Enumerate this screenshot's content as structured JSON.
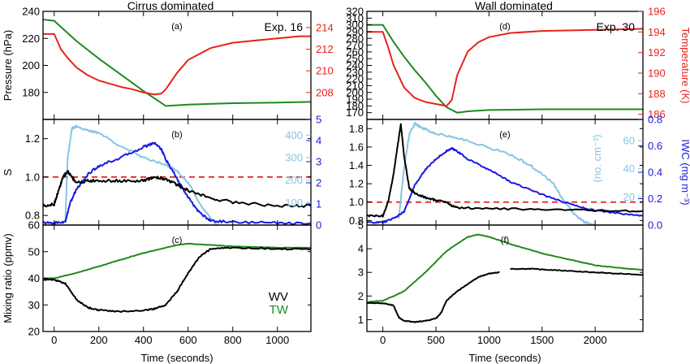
{
  "colors": {
    "black": "#000000",
    "red": "#e8221c",
    "green": "#1f8a1f",
    "blue": "#1a1ae0",
    "light_blue": "#87c4e4"
  },
  "titles": {
    "left": "Cirrus dominated",
    "right": "Wall dominated"
  },
  "chart_data": [
    {
      "type": "line",
      "panel": "(a)",
      "annotation": "Exp. 16",
      "ylabel": "Pressure (hPa)",
      "ylabel_right": "",
      "xlim": [
        -50,
        1150
      ],
      "ylim": [
        160,
        240
      ],
      "ylim_right": [
        205.5,
        215.5
      ],
      "xticks": [
        0,
        200,
        400,
        600,
        800,
        1000
      ],
      "yticks": [
        180,
        200,
        220,
        240
      ],
      "yticks_right": [
        208,
        210,
        212,
        214
      ],
      "series": [
        {
          "axis": "left",
          "color": "green",
          "x": [
            -50,
            0,
            100,
            200,
            300,
            400,
            500,
            600,
            800,
            1000,
            1150
          ],
          "y": [
            234,
            233,
            218,
            205,
            193,
            181,
            170,
            171,
            172,
            172.5,
            173
          ]
        },
        {
          "axis": "right",
          "color": "red",
          "x": [
            -50,
            0,
            30,
            60,
            100,
            150,
            200,
            300,
            350,
            400,
            450,
            480,
            500,
            550,
            600,
            700,
            800,
            900,
            1000,
            1100,
            1150
          ],
          "y": [
            213.4,
            213.4,
            212.0,
            211.2,
            210.3,
            209.6,
            209.1,
            208.5,
            208.3,
            208.0,
            207.8,
            207.9,
            208.3,
            209.8,
            211.0,
            212.1,
            212.6,
            212.8,
            213.0,
            213.2,
            213.2
          ]
        }
      ]
    },
    {
      "type": "line",
      "panel": "(d)",
      "annotation": "Exp. 30",
      "ylabel": "",
      "ylabel_right": "Temperature (K)",
      "xlim": [
        -150,
        2450
      ],
      "ylim": [
        160,
        320
      ],
      "ylim_right": [
        185.5,
        196
      ],
      "xticks": [
        0,
        500,
        1000,
        1500,
        2000
      ],
      "yticks": [
        170,
        180,
        190,
        200,
        210,
        220,
        230,
        240,
        250,
        260,
        270,
        280,
        290,
        300,
        310,
        320
      ],
      "yticks_right": [
        186,
        188,
        190,
        192,
        194,
        196
      ],
      "series": [
        {
          "axis": "left",
          "color": "green",
          "x": [
            -150,
            0,
            100,
            200,
            300,
            400,
            500,
            600,
            700,
            800,
            1000,
            1500,
            2000,
            2450
          ],
          "y": [
            300,
            300,
            275,
            253,
            233,
            215,
            195,
            178,
            170,
            172,
            174,
            175,
            175,
            175
          ]
        },
        {
          "axis": "right",
          "color": "red",
          "x": [
            -150,
            0,
            50,
            100,
            200,
            300,
            400,
            500,
            600,
            650,
            700,
            800,
            900,
            1000,
            1200,
            1500,
            2000,
            2450
          ],
          "y": [
            194.0,
            194.0,
            192.5,
            190.8,
            188.6,
            187.6,
            187.2,
            187.0,
            186.8,
            187.4,
            189.8,
            192.1,
            193.0,
            193.5,
            193.9,
            194.1,
            194.2,
            194.3
          ]
        }
      ]
    },
    {
      "type": "line",
      "panel": "(b)",
      "annotation": "",
      "ylabel": "S",
      "ylabel_right": "",
      "xlim": [
        -50,
        1150
      ],
      "ylim": [
        0.75,
        1.3
      ],
      "ylim_right": [
        0,
        5
      ],
      "xticks": [
        0,
        200,
        400,
        600,
        800,
        1000
      ],
      "yticks": [
        0.8,
        1.0,
        1.2
      ],
      "yticks_right": [
        0,
        1,
        2,
        3,
        4,
        5
      ],
      "inner_ticks": [
        100,
        200,
        300,
        400
      ],
      "reference_line": {
        "y": 1.0,
        "color": "red",
        "style": "dashed"
      },
      "series": [
        {
          "axis": "left",
          "color": "black",
          "x": [
            -50,
            0,
            20,
            40,
            60,
            80,
            100,
            150,
            200,
            300,
            400,
            450,
            500,
            550,
            600,
            700,
            800,
            1000,
            1150
          ],
          "y": [
            0.85,
            0.86,
            0.93,
            1.0,
            1.03,
            1.0,
            0.97,
            0.98,
            0.98,
            0.98,
            0.98,
            1.0,
            0.99,
            0.96,
            0.93,
            0.89,
            0.87,
            0.85,
            0.85
          ]
        },
        {
          "axis": "right",
          "color": "blue",
          "x": [
            -50,
            0,
            50,
            70,
            100,
            150,
            200,
            300,
            400,
            450,
            480,
            500,
            550,
            600,
            650,
            700,
            800,
            1000,
            1150
          ],
          "y": [
            0.1,
            0.1,
            0.15,
            1.0,
            1.7,
            2.4,
            2.8,
            3.2,
            3.7,
            3.9,
            3.6,
            3.1,
            2.2,
            1.3,
            0.6,
            0.2,
            0.15,
            0.1,
            0.1
          ]
        },
        {
          "axis": "inner",
          "color": "light_blue",
          "x": [
            50,
            60,
            80,
            100,
            150,
            200,
            300,
            400,
            500,
            550,
            600,
            650,
            700,
            730
          ],
          "y": [
            20,
            300,
            430,
            440,
            420,
            410,
            350,
            300,
            270,
            240,
            190,
            100,
            30,
            0
          ]
        }
      ]
    },
    {
      "type": "line",
      "panel": "(e)",
      "annotation": "",
      "ylabel": "",
      "ylabel_right": "IWC (mg m⁻³)",
      "ylabel_inner": "(no. cm⁻³)",
      "xlim": [
        -150,
        2450
      ],
      "ylim": [
        0.75,
        1.9
      ],
      "ylim_right": [
        0,
        0.8
      ],
      "xticks": [
        0,
        500,
        1000,
        1500,
        2000
      ],
      "yticks": [
        0.8,
        1.0,
        1.2,
        1.4,
        1.6,
        1.8
      ],
      "yticks_right": [
        0.0,
        0.2,
        0.4,
        0.6,
        0.8
      ],
      "inner_ticks": [
        20,
        40,
        60
      ],
      "reference_line": {
        "y": 1.0,
        "color": "red",
        "style": "dashed"
      },
      "series": [
        {
          "axis": "left",
          "color": "black",
          "x": [
            -150,
            0,
            50,
            100,
            150,
            170,
            200,
            250,
            300,
            400,
            500,
            600,
            650,
            700,
            1000,
            1500,
            2000,
            2450
          ],
          "y": [
            0.85,
            0.85,
            1.0,
            1.3,
            1.7,
            1.85,
            1.5,
            1.15,
            1.1,
            1.05,
            1.02,
            1.0,
            0.96,
            0.94,
            0.93,
            0.92,
            0.91,
            0.9
          ]
        },
        {
          "axis": "right",
          "color": "blue",
          "x": [
            -150,
            0,
            100,
            200,
            300,
            400,
            500,
            600,
            650,
            700,
            800,
            1000,
            1200,
            1500,
            1800,
            2000,
            2200,
            2450
          ],
          "y": [
            0.02,
            0.02,
            0.05,
            0.1,
            0.3,
            0.42,
            0.5,
            0.56,
            0.58,
            0.56,
            0.5,
            0.42,
            0.33,
            0.23,
            0.15,
            0.11,
            0.09,
            0.07
          ]
        },
        {
          "axis": "inner",
          "color": "light_blue",
          "x": [
            150,
            200,
            250,
            300,
            350,
            400,
            500,
            700,
            1000,
            1200,
            1400,
            1600,
            1700,
            1800,
            1900,
            2000
          ],
          "y": [
            5,
            40,
            65,
            72,
            70,
            68,
            65,
            62,
            55,
            50,
            42,
            30,
            18,
            8,
            2,
            0
          ]
        }
      ]
    },
    {
      "type": "line",
      "panel": "(c)",
      "annotation": "",
      "ylabel": "Mixing ratio (ppmv)",
      "ylabel_right": "",
      "xlabel": "Time (seconds)",
      "xlim": [
        -50,
        1150
      ],
      "ylim": [
        20,
        60
      ],
      "xticks": [
        0,
        200,
        400,
        600,
        800,
        1000
      ],
      "yticks": [
        20,
        30,
        40,
        50,
        60
      ],
      "legend": [
        {
          "name": "WV",
          "color": "black"
        },
        {
          "name": "TW",
          "color": "green"
        }
      ],
      "series": [
        {
          "axis": "left",
          "color": "green",
          "x": [
            -50,
            0,
            100,
            200,
            300,
            400,
            500,
            550,
            600,
            700,
            800,
            1000,
            1150
          ],
          "y": [
            40,
            40,
            42,
            44.5,
            47,
            49.5,
            51.5,
            52.5,
            53,
            52.5,
            52,
            51.5,
            51.5
          ]
        },
        {
          "axis": "left",
          "color": "black",
          "x": [
            -50,
            0,
            50,
            100,
            150,
            200,
            300,
            400,
            450,
            500,
            550,
            600,
            650,
            700,
            800,
            1000,
            1150
          ],
          "y": [
            39.5,
            39.5,
            38,
            32,
            29,
            28,
            27.5,
            28,
            28.5,
            30,
            35,
            42,
            48,
            51,
            51.5,
            51,
            51
          ]
        }
      ]
    },
    {
      "type": "line",
      "panel": "(f)",
      "annotation": "",
      "ylabel": "",
      "ylabel_right": "",
      "xlabel": "Time (seconds)",
      "xlim": [
        -150,
        2450
      ],
      "ylim": [
        0.5,
        5
      ],
      "xticks": [
        0,
        500,
        1000,
        1500,
        2000
      ],
      "yticks": [
        1,
        2,
        3,
        4,
        5
      ],
      "series": [
        {
          "axis": "left",
          "color": "green",
          "x": [
            -150,
            0,
            200,
            400,
            600,
            800,
            900,
            1000,
            1200,
            1500,
            1800,
            2000,
            2200,
            2450
          ],
          "y": [
            1.75,
            1.8,
            2.2,
            3.0,
            3.9,
            4.5,
            4.6,
            4.5,
            4.2,
            3.8,
            3.5,
            3.3,
            3.2,
            3.1
          ]
        },
        {
          "axis": "left",
          "color": "black",
          "x": [
            -150,
            0,
            100,
            150,
            200,
            300,
            400,
            500,
            550,
            600,
            700,
            800,
            900,
            1000,
            1100
          ],
          "y": [
            1.7,
            1.7,
            1.6,
            1.1,
            0.95,
            0.9,
            0.95,
            1.05,
            1.3,
            1.8,
            2.2,
            2.5,
            2.8,
            2.95,
            3.0
          ]
        },
        {
          "axis": "left",
          "color": "black",
          "x": [
            1200,
            1400,
            1600,
            1800,
            2000,
            2200,
            2450
          ],
          "y": [
            3.15,
            3.15,
            3.1,
            3.05,
            3.0,
            2.95,
            2.9
          ]
        }
      ]
    }
  ]
}
